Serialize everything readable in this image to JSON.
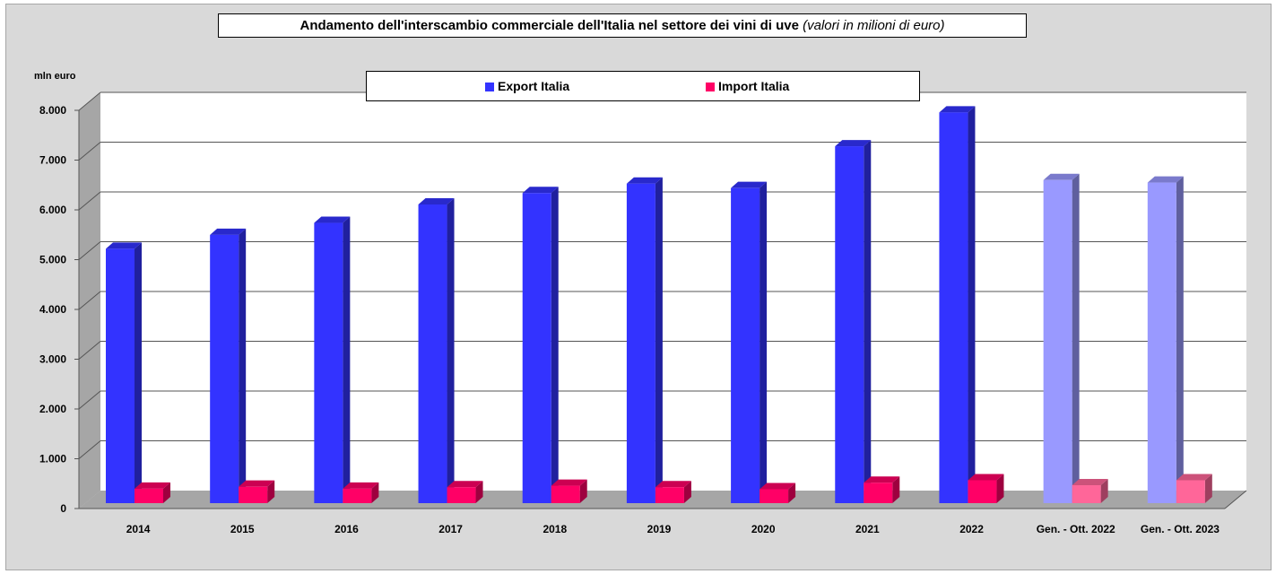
{
  "chart_data": {
    "type": "bar",
    "title": "Andamento dell'interscambio commerciale dell'Italia nel settore dei vini di uve",
    "subtitle": "(valori in milioni di euro)",
    "ylabel": "mln euro",
    "xlabel": "",
    "ylim": [
      0,
      8000
    ],
    "y_ticks": [
      "0",
      "1.000",
      "2.000",
      "3.000",
      "4.000",
      "5.000",
      "6.000",
      "7.000",
      "8.000"
    ],
    "categories": [
      "2014",
      "2015",
      "2016",
      "2017",
      "2018",
      "2019",
      "2020",
      "2021",
      "2022",
      "Gen. - Ott. 2022",
      "Gen. - Ott. 2023"
    ],
    "series": [
      {
        "name": "Export Italia",
        "values": [
          5110,
          5390,
          5630,
          6000,
          6230,
          6420,
          6330,
          7170,
          7850,
          6490,
          6440
        ]
      },
      {
        "name": "Import Italia",
        "values": [
          290,
          330,
          290,
          320,
          350,
          320,
          280,
          410,
          460,
          360,
          460
        ]
      }
    ],
    "grid": true,
    "legend_position": "top"
  },
  "colors": {
    "export": "#3333ff",
    "export_light": "#9999ff",
    "import": "#ff0066",
    "import_light": "#ff6699",
    "background": "#d9d9d9",
    "plot_area": "#ffffff"
  }
}
